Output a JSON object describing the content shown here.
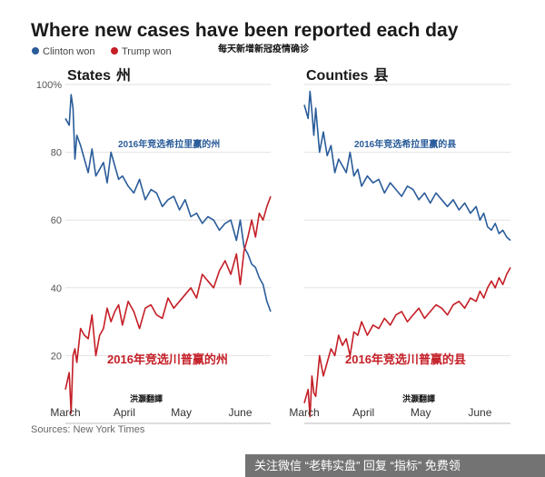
{
  "title": "Where new cases have been reported each day",
  "subtitle_cn": "每天新增新冠疫情确诊",
  "source": "Sources: New York Times",
  "credit": "洪灏翻譯",
  "banner": "关注微信 “老韩实盘” 回复 “指标” 免费领",
  "colors": {
    "clinton": "#2a5c9a",
    "trump": "#c41e26"
  },
  "chart_data": {
    "type": "line",
    "legend": [
      {
        "name": "Clinton won",
        "color": "#2a5c9a"
      },
      {
        "name": "Trump won",
        "color": "#c41e26"
      }
    ],
    "legend_placement": "top-left",
    "grid": true,
    "ylim": [
      0,
      100
    ],
    "y_ticks": [
      100,
      80,
      60,
      40,
      20
    ],
    "y_tick_labels": [
      "100%",
      "80",
      "60",
      "40",
      "20"
    ],
    "x_tick_labels": [
      "March",
      "April",
      "May",
      "June"
    ],
    "x_tick_days": [
      0,
      31,
      61,
      92
    ],
    "panels": [
      {
        "title": "States",
        "title_cn": "州",
        "annotation_clinton": "2016年竞选希拉里赢的州",
        "annotation_trump": "2016年竞选川普赢的州",
        "series": [
          {
            "name": "Clinton won",
            "x": [
              0,
              2,
              3,
              4,
              5,
              6,
              8,
              10,
              12,
              14,
              16,
              18,
              20,
              22,
              24,
              26,
              28,
              30,
              33,
              36,
              39,
              42,
              45,
              48,
              51,
              54,
              57,
              60,
              63,
              66,
              69,
              72,
              75,
              78,
              81,
              84,
              87,
              90,
              92,
              94,
              96,
              98,
              100,
              102,
              104,
              106,
              108
            ],
            "values": [
              90,
              88,
              97,
              93,
              78,
              85,
              82,
              78,
              74,
              81,
              73,
              75,
              77,
              71,
              80,
              76,
              72,
              73,
              70,
              68,
              72,
              66,
              69,
              68,
              64,
              66,
              67,
              63,
              66,
              61,
              62,
              59,
              61,
              60,
              57,
              59,
              60,
              54,
              60,
              52,
              50,
              47,
              46,
              43,
              41,
              36,
              33
            ]
          },
          {
            "name": "Trump won",
            "x": [
              0,
              2,
              3,
              4,
              5,
              6,
              8,
              10,
              12,
              14,
              16,
              18,
              20,
              22,
              24,
              26,
              28,
              30,
              33,
              36,
              39,
              42,
              45,
              48,
              51,
              54,
              57,
              60,
              63,
              66,
              69,
              72,
              75,
              78,
              81,
              84,
              87,
              90,
              92,
              94,
              96,
              98,
              100,
              102,
              104,
              106,
              108
            ],
            "values": [
              10,
              15,
              3,
              20,
              22,
              18,
              28,
              26,
              25,
              32,
              20,
              26,
              28,
              34,
              30,
              33,
              35,
              29,
              36,
              33,
              28,
              34,
              35,
              32,
              31,
              37,
              34,
              36,
              38,
              40,
              37,
              44,
              42,
              40,
              45,
              48,
              44,
              50,
              41,
              51,
              55,
              60,
              55,
              62,
              60,
              64,
              67
            ]
          }
        ]
      },
      {
        "title": "Counties",
        "title_cn": "县",
        "annotation_clinton": "2016年竞选希拉里赢的县",
        "annotation_trump": "2016年竞选川普赢的县",
        "series": [
          {
            "name": "Clinton won",
            "x": [
              0,
              2,
              3,
              4,
              5,
              6,
              8,
              10,
              12,
              14,
              16,
              18,
              20,
              22,
              24,
              26,
              28,
              30,
              33,
              36,
              39,
              42,
              45,
              48,
              51,
              54,
              57,
              60,
              63,
              66,
              69,
              72,
              75,
              78,
              81,
              84,
              87,
              90,
              92,
              94,
              96,
              98,
              100,
              102,
              104,
              106,
              108
            ],
            "values": [
              94,
              90,
              98,
              92,
              85,
              93,
              80,
              86,
              79,
              82,
              74,
              78,
              76,
              74,
              80,
              73,
              75,
              70,
              73,
              71,
              72,
              68,
              71,
              69,
              67,
              70,
              69,
              66,
              68,
              65,
              68,
              66,
              64,
              66,
              63,
              65,
              62,
              64,
              60,
              62,
              58,
              57,
              59,
              56,
              57,
              55,
              54
            ]
          },
          {
            "name": "Trump won",
            "x": [
              0,
              2,
              3,
              4,
              5,
              6,
              8,
              10,
              12,
              14,
              16,
              18,
              20,
              22,
              24,
              26,
              28,
              30,
              33,
              36,
              39,
              42,
              45,
              48,
              51,
              54,
              57,
              60,
              63,
              66,
              69,
              72,
              75,
              78,
              81,
              84,
              87,
              90,
              92,
              94,
              96,
              98,
              100,
              102,
              104,
              106,
              108
            ],
            "values": [
              6,
              10,
              2,
              14,
              9,
              8,
              20,
              14,
              18,
              22,
              20,
              26,
              23,
              25,
              20,
              27,
              26,
              30,
              26,
              29,
              28,
              31,
              29,
              32,
              33,
              30,
              32,
              34,
              31,
              33,
              35,
              34,
              32,
              35,
              36,
              34,
              37,
              36,
              39,
              37,
              40,
              42,
              40,
              43,
              41,
              44,
              46
            ]
          }
        ]
      }
    ]
  }
}
